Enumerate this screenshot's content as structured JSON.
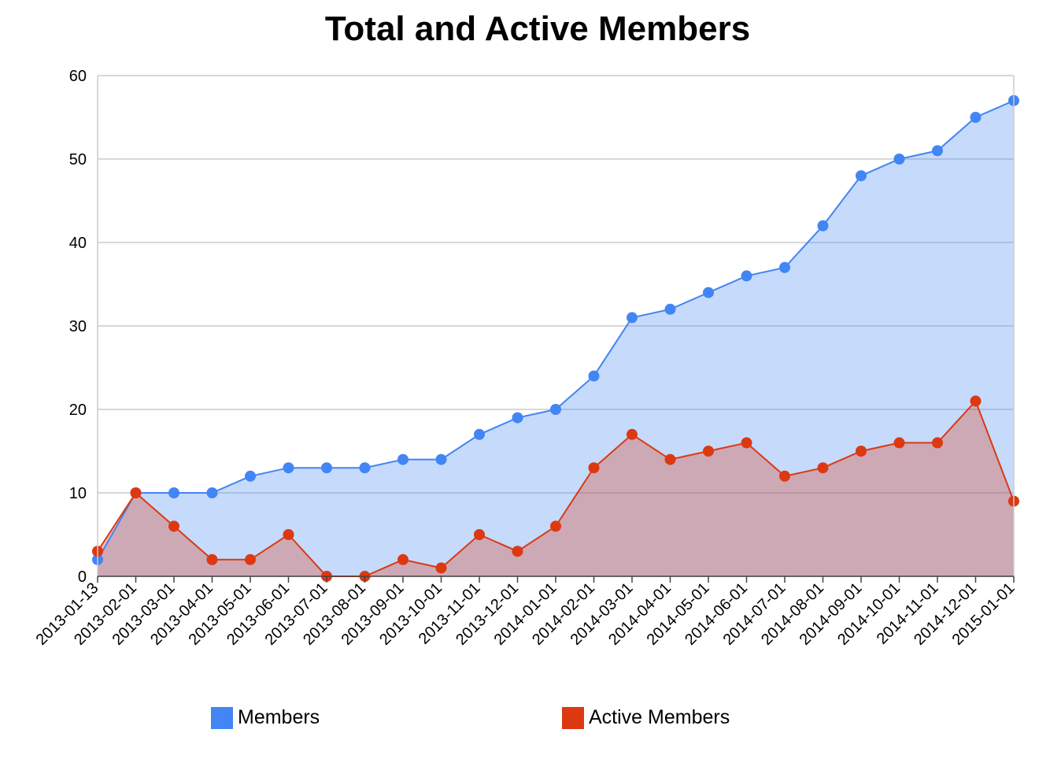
{
  "chart_data": {
    "type": "area",
    "title": "Total and Active Members",
    "xlabel": "",
    "ylabel": "",
    "ylim": [
      0,
      60
    ],
    "yticks": [
      0,
      10,
      20,
      30,
      40,
      50,
      60
    ],
    "grid": true,
    "legend_position": "bottom",
    "x": [
      "2013-01-13",
      "2013-02-01",
      "2013-03-01",
      "2013-04-01",
      "2013-05-01",
      "2013-06-01",
      "2013-07-01",
      "2013-08-01",
      "2013-09-01",
      "2013-10-01",
      "2013-11-01",
      "2013-12-01",
      "2014-01-01",
      "2014-02-01",
      "2014-03-01",
      "2014-04-01",
      "2014-05-01",
      "2014-06-01",
      "2014-07-01",
      "2014-08-01",
      "2014-09-01",
      "2014-10-01",
      "2014-11-01",
      "2014-12-01",
      "2015-01-01"
    ],
    "series": [
      {
        "name": "Members",
        "color": "#4285f4",
        "values": [
          2,
          10,
          10,
          10,
          12,
          13,
          13,
          13,
          14,
          14,
          17,
          19,
          20,
          24,
          31,
          32,
          34,
          36,
          37,
          42,
          48,
          50,
          51,
          55,
          57
        ]
      },
      {
        "name": "Active Members",
        "color": "#dc3912",
        "values": [
          3,
          10,
          6,
          2,
          2,
          5,
          0,
          0,
          2,
          1,
          5,
          3,
          6,
          13,
          17,
          14,
          15,
          16,
          12,
          13,
          15,
          16,
          16,
          21,
          9
        ]
      }
    ]
  }
}
